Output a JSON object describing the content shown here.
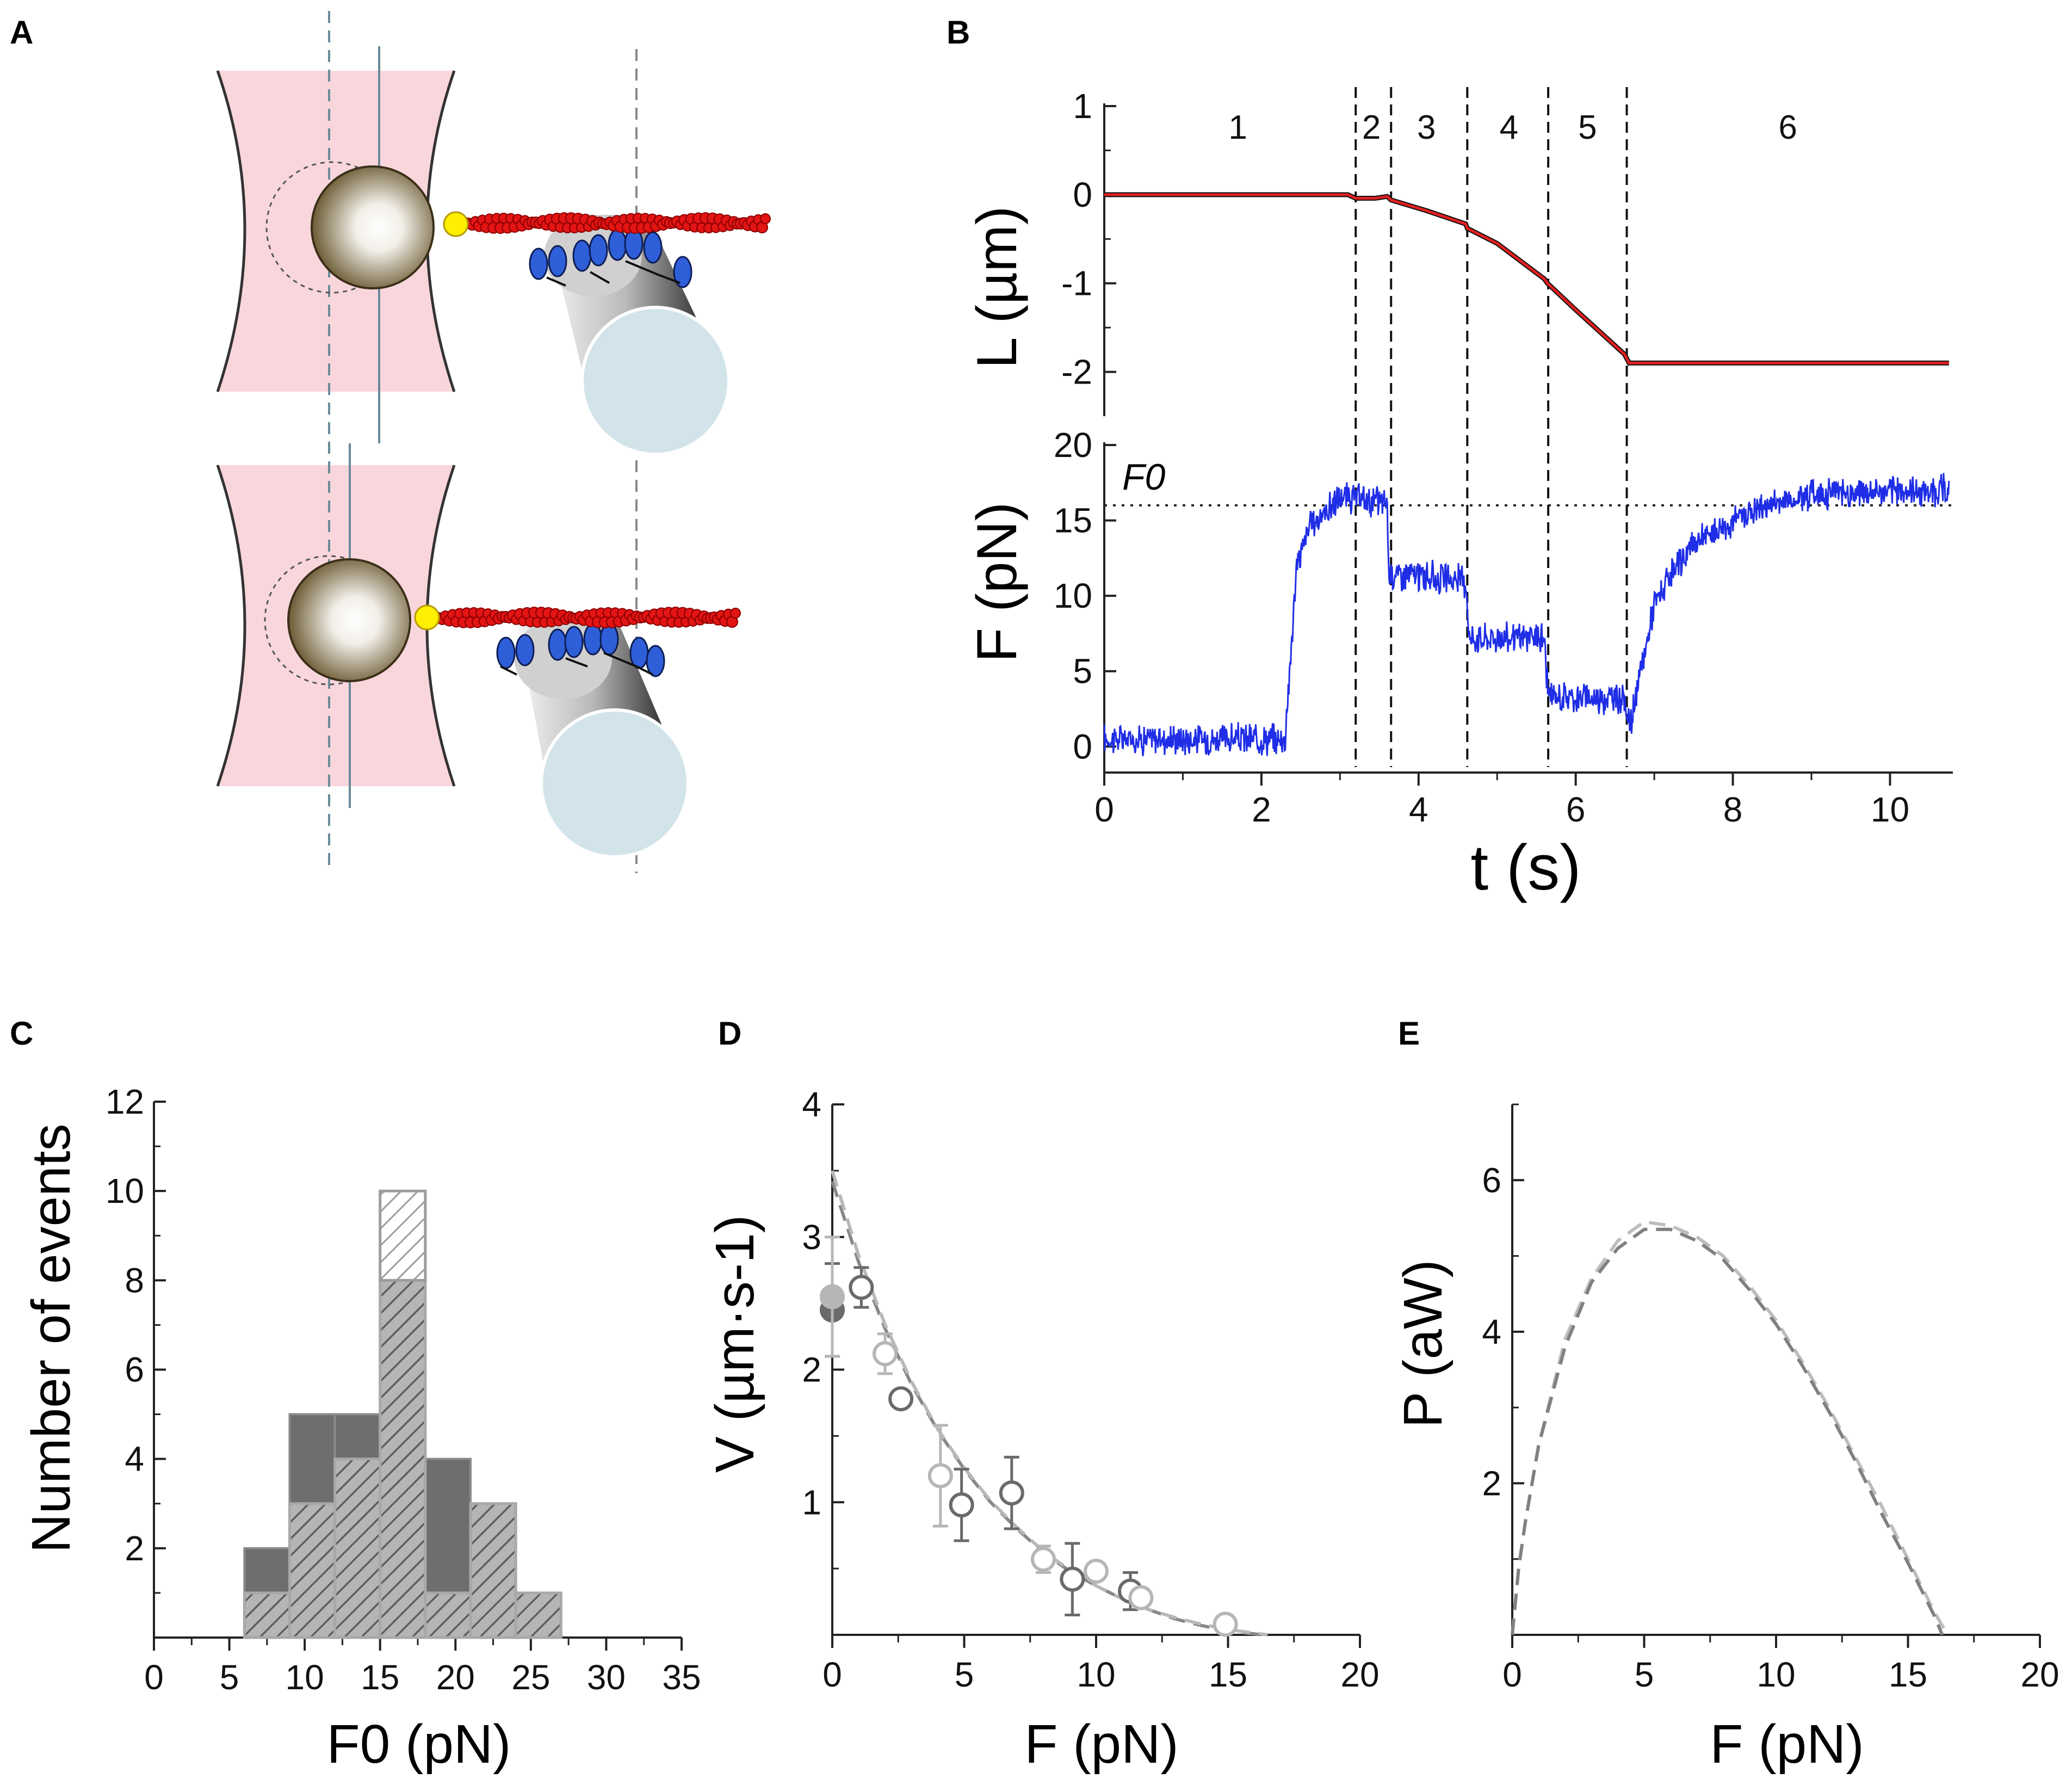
{
  "panels": {
    "A": {
      "label": "A"
    },
    "B": {
      "label": "B"
    },
    "C": {
      "label": "C"
    },
    "D": {
      "label": "D"
    },
    "E": {
      "label": "E"
    }
  },
  "colors": {
    "trap": "#f9d6dc",
    "actin": "#e31414",
    "myosin": "#2f5fd8",
    "bead": "#6b5a33",
    "handle": "#ffef00",
    "length_trace": "#e02020",
    "force_trace": "#1f2ee6",
    "hist_dark": "#6e6e6e",
    "hist_light": "#9c9c9c",
    "d_dark": "#6a6a6a",
    "d_light": "#b6b6b6"
  },
  "chart_data": [
    {
      "panel": "B",
      "type": "line",
      "title": "",
      "xlabel": "t (s)",
      "xlim": [
        0,
        10.8
      ],
      "xticks": [
        "0",
        "2",
        "4",
        "6",
        "8",
        "10"
      ],
      "top": {
        "ylabel": "L (µm)",
        "ylim": [
          -2.5,
          1
        ],
        "yticks": [
          "1",
          "0",
          "-1",
          "-2"
        ],
        "series": [
          {
            "name": "L",
            "x": [
              0,
              3.1,
              3.2,
              3.45,
              3.6,
              3.65,
              4.1,
              4.6,
              4.62,
              5.0,
              5.6,
              5.64,
              6.0,
              6.62,
              6.68,
              10.75
            ],
            "y": [
              0,
              0,
              -0.04,
              -0.04,
              -0.02,
              -0.06,
              -0.18,
              -0.33,
              -0.38,
              -0.55,
              -0.95,
              -1.0,
              -1.3,
              -1.8,
              -1.9,
              -1.9
            ]
          }
        ]
      },
      "bottom": {
        "ylabel": "F (pN)",
        "ylim": [
          -1,
          20
        ],
        "yticks": [
          "20",
          "15",
          "10",
          "5",
          "0"
        ],
        "f0_label": "F0",
        "f0_value": 16,
        "series": [
          {
            "name": "F",
            "x": [
              0,
              2.3,
              2.45,
              2.6,
              3.0,
              3.6,
              3.62,
              4.6,
              4.65,
              5.6,
              5.65,
              6.6,
              6.7,
              7.0,
              7.5,
              8.3,
              9.0,
              10.75
            ],
            "y": [
              0.5,
              0.5,
              12,
              14.5,
              16.5,
              16.2,
              11.5,
              11,
              7.2,
              7.2,
              3.3,
              3.2,
              1.5,
              9.5,
              13.5,
              15.8,
              16.8,
              17
            ]
          }
        ]
      },
      "segments": {
        "boundaries": [
          3.2,
          3.65,
          4.62,
          5.65,
          6.65
        ],
        "labels": [
          {
            "text": "1",
            "x": 1.7
          },
          {
            "text": "2",
            "x": 3.4
          },
          {
            "text": "3",
            "x": 4.1
          },
          {
            "text": "4",
            "x": 5.15
          },
          {
            "text": "5",
            "x": 6.15
          },
          {
            "text": "6",
            "x": 8.7
          }
        ]
      }
    },
    {
      "panel": "C",
      "type": "bar",
      "title": "",
      "xlabel": "F0 (pN)",
      "ylabel": "Number of events",
      "xlim": [
        0,
        35
      ],
      "ylim": [
        0,
        12
      ],
      "xticks": [
        "0",
        "5",
        "10",
        "15",
        "20",
        "25",
        "30",
        "35"
      ],
      "yticks": [
        "2",
        "4",
        "6",
        "8",
        "10",
        "12"
      ],
      "bin_edges": [
        6,
        9,
        12,
        15,
        18,
        21,
        24,
        27
      ],
      "series": [
        {
          "name": "dark",
          "values": [
            2,
            5,
            5,
            8,
            4,
            3,
            1
          ]
        },
        {
          "name": "hatched",
          "values": [
            1,
            3,
            4,
            10,
            1,
            3,
            1
          ]
        }
      ]
    },
    {
      "panel": "D",
      "type": "scatter",
      "title": "",
      "xlabel": "F (pN)",
      "ylabel": "V (µm·s-1)",
      "xlim": [
        0,
        20
      ],
      "ylim": [
        0,
        4
      ],
      "xticks": [
        "0",
        "5",
        "10",
        "15",
        "20"
      ],
      "yticks": [
        "1",
        "2",
        "3",
        "4"
      ],
      "series": [
        {
          "name": "dark",
          "points": [
            {
              "x": 0,
              "y": 2.45,
              "err": 0.35,
              "filled": true
            },
            {
              "x": 1.1,
              "y": 2.62,
              "err": 0.15
            },
            {
              "x": 2.6,
              "y": 1.78,
              "err": 0.06
            },
            {
              "x": 4.9,
              "y": 0.98,
              "err": 0.27
            },
            {
              "x": 6.8,
              "y": 1.07,
              "err": 0.27
            },
            {
              "x": 9.1,
              "y": 0.42,
              "err": 0.27
            },
            {
              "x": 11.3,
              "y": 0.33,
              "err": 0.14
            }
          ]
        },
        {
          "name": "light",
          "points": [
            {
              "x": 0,
              "y": 2.55,
              "err": 0.45,
              "filled": true
            },
            {
              "x": 2.0,
              "y": 2.12,
              "err": 0.15
            },
            {
              "x": 4.1,
              "y": 1.2,
              "err": 0.38
            },
            {
              "x": 8.0,
              "y": 0.57,
              "err": 0.1
            },
            {
              "x": 10.0,
              "y": 0.48,
              "err": 0.06
            },
            {
              "x": 11.7,
              "y": 0.28,
              "err": 0.06
            },
            {
              "x": 14.9,
              "y": 0.08,
              "err": 0.03
            }
          ]
        }
      ],
      "fits": [
        {
          "name": "dark fit",
          "x": [
            0,
            1,
            2,
            3,
            4,
            5,
            6,
            7,
            8,
            9,
            10,
            11,
            12,
            13,
            14,
            15,
            16.3
          ],
          "y": [
            3.42,
            2.81,
            2.31,
            1.89,
            1.54,
            1.25,
            1.0,
            0.8,
            0.62,
            0.48,
            0.37,
            0.27,
            0.19,
            0.12,
            0.07,
            0.03,
            0.0
          ]
        },
        {
          "name": "light fit",
          "x": [
            0,
            1,
            2,
            3,
            4,
            5,
            6,
            7,
            8,
            9,
            10,
            11,
            12,
            13,
            14,
            15,
            16.5
          ],
          "y": [
            3.5,
            2.86,
            2.34,
            1.91,
            1.55,
            1.26,
            1.01,
            0.81,
            0.63,
            0.49,
            0.37,
            0.27,
            0.19,
            0.13,
            0.08,
            0.04,
            0.0
          ]
        }
      ]
    },
    {
      "panel": "E",
      "type": "line",
      "title": "",
      "xlabel": "F (pN)",
      "ylabel": "P (aW)",
      "xlim": [
        0,
        20
      ],
      "ylim": [
        0,
        7
      ],
      "xticks": [
        "0",
        "5",
        "10",
        "15",
        "20"
      ],
      "yticks": [
        "2",
        "4",
        "6"
      ],
      "series": [
        {
          "name": "light",
          "x": [
            0,
            0.25,
            0.5,
            1,
            2,
            3,
            4,
            5,
            6,
            7,
            8,
            9,
            10,
            11,
            12,
            13,
            14,
            15,
            16,
            16.5
          ],
          "y": [
            0,
            0.9,
            1.5,
            2.5,
            3.9,
            4.7,
            5.2,
            5.45,
            5.4,
            5.25,
            5.0,
            4.6,
            4.15,
            3.6,
            3.0,
            2.35,
            1.7,
            1.0,
            0.3,
            0
          ]
        },
        {
          "name": "dark",
          "x": [
            0,
            0.25,
            0.5,
            1,
            2,
            3,
            4,
            5,
            6,
            7,
            8,
            9,
            10,
            11,
            12,
            13,
            14,
            15,
            16,
            16.3
          ],
          "y": [
            0,
            0.9,
            1.5,
            2.5,
            3.8,
            4.65,
            5.1,
            5.35,
            5.35,
            5.2,
            4.95,
            4.55,
            4.1,
            3.55,
            2.95,
            2.3,
            1.6,
            0.95,
            0.25,
            0
          ]
        }
      ]
    }
  ]
}
